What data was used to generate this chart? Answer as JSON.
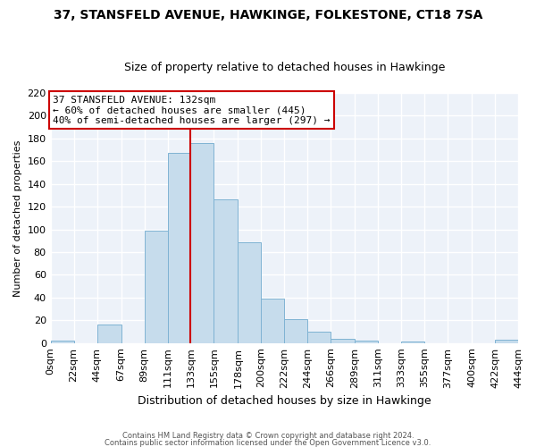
{
  "title": "37, STANSFELD AVENUE, HAWKINGE, FOLKESTONE, CT18 7SA",
  "subtitle": "Size of property relative to detached houses in Hawkinge",
  "xlabel": "Distribution of detached houses by size in Hawkinge",
  "ylabel": "Number of detached properties",
  "bar_values": [
    2,
    0,
    16,
    0,
    99,
    167,
    176,
    126,
    89,
    39,
    21,
    10,
    4,
    2,
    0,
    1,
    0,
    0,
    0,
    3
  ],
  "bin_edges": [
    0,
    22,
    44,
    67,
    89,
    111,
    133,
    155,
    178,
    200,
    222,
    244,
    266,
    289,
    311,
    333,
    355,
    377,
    400,
    422,
    444
  ],
  "tick_labels": [
    "0sqm",
    "22sqm",
    "44sqm",
    "67sqm",
    "89sqm",
    "111sqm",
    "133sqm",
    "155sqm",
    "178sqm",
    "200sqm",
    "222sqm",
    "244sqm",
    "266sqm",
    "289sqm",
    "311sqm",
    "333sqm",
    "355sqm",
    "377sqm",
    "400sqm",
    "422sqm",
    "444sqm"
  ],
  "bar_color": "#c6dcec",
  "bar_edge_color": "#7fb3d3",
  "redline_x": 133,
  "redline_color": "#cc0000",
  "annotation_box_edge": "#cc0000",
  "annotation_line1": "37 STANSFELD AVENUE: 132sqm",
  "annotation_line2": "← 60% of detached houses are smaller (445)",
  "annotation_line3": "40% of semi-detached houses are larger (297) →",
  "ylim": [
    0,
    220
  ],
  "yticks": [
    0,
    20,
    40,
    60,
    80,
    100,
    120,
    140,
    160,
    180,
    200,
    220
  ],
  "footer_line1": "Contains HM Land Registry data © Crown copyright and database right 2024.",
  "footer_line2": "Contains public sector information licensed under the Open Government Licence v3.0.",
  "bg_color": "#edf2f9",
  "grid_color": "#ffffff",
  "title_fontsize": 10,
  "subtitle_fontsize": 9
}
